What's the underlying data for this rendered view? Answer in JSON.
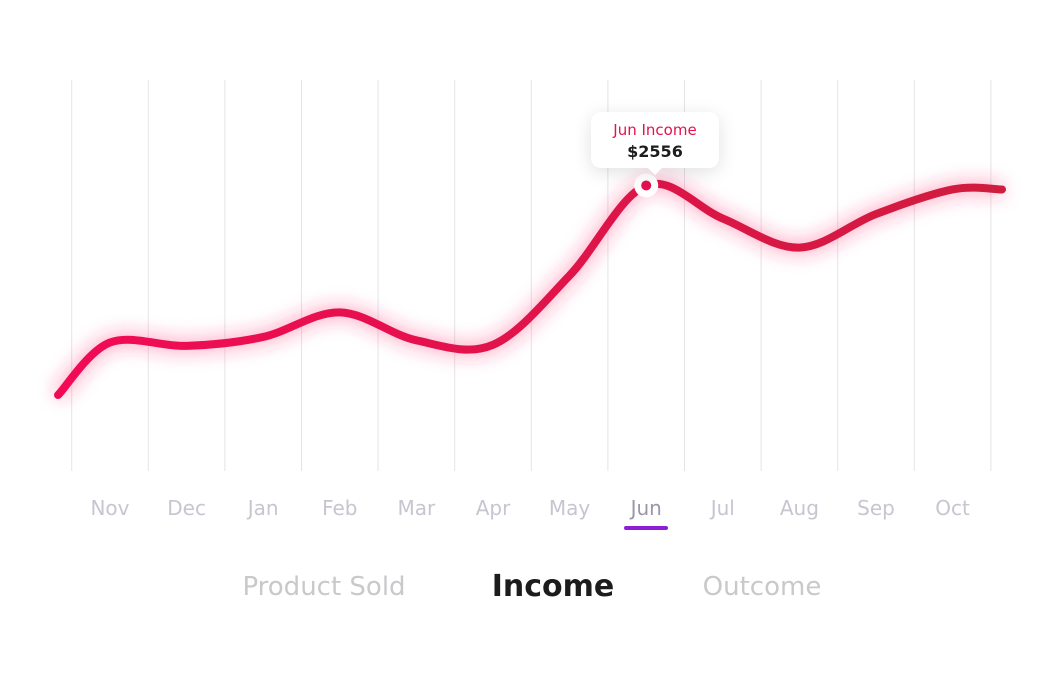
{
  "chart_data": {
    "type": "line",
    "categories": [
      "Nov",
      "Dec",
      "Jan",
      "Feb",
      "Mar",
      "Apr",
      "May",
      "Jun",
      "Jul",
      "Aug",
      "Sep",
      "Oct"
    ],
    "series": [
      {
        "values": [
          1150,
          1120,
          1200,
          1420,
          1170,
          1130,
          1750,
          2556,
          2260,
          2000,
          2300,
          2520
        ]
      }
    ],
    "ylim": [
      0,
      3500
    ],
    "grid": "vertical",
    "line_color": "#e4104f",
    "highlight": {
      "category": "Jun",
      "label": "Jun Income",
      "value": "$2556"
    },
    "selected_month": "Jun",
    "underline_color": "#8e1ed6"
  },
  "tabs": [
    {
      "label": "Product Sold",
      "active": false
    },
    {
      "label": "Income",
      "active": true
    },
    {
      "label": "Outcome",
      "active": false
    }
  ]
}
